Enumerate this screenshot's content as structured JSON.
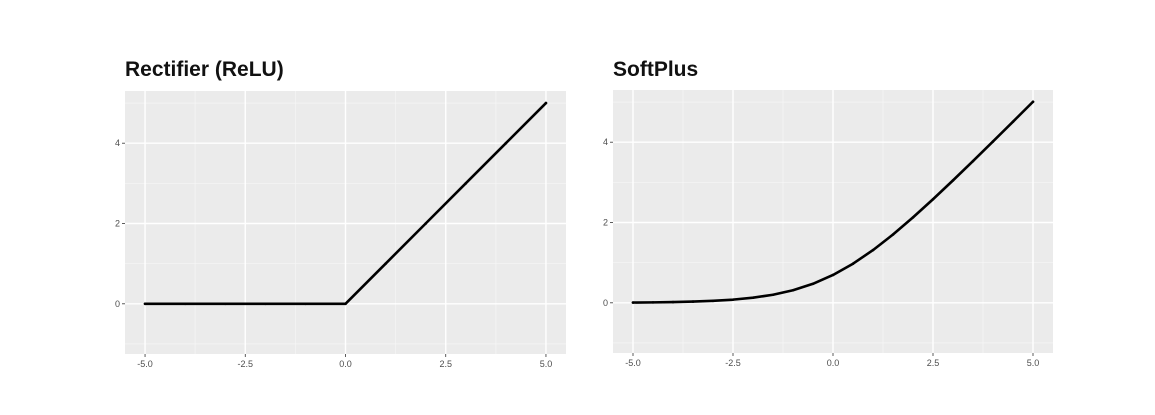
{
  "chart_data": [
    {
      "type": "line",
      "title": "Rectifier (ReLU)",
      "xlabel": "",
      "ylabel": "",
      "xlim": [
        -5.5,
        5.5
      ],
      "ylim": [
        -1.25,
        5.3
      ],
      "x_ticks": [
        -5.0,
        -2.5,
        0.0,
        2.5,
        5.0
      ],
      "x_tick_labels": [
        "-5.0",
        "-2.5",
        "0.0",
        "2.5",
        "5.0"
      ],
      "y_ticks": [
        0,
        2,
        4
      ],
      "y_tick_labels": [
        "0",
        "2",
        "4"
      ],
      "grid": true,
      "series": [
        {
          "x": [
            -5.0,
            -4.0,
            -3.0,
            -2.0,
            -1.0,
            0.0,
            1.0,
            2.0,
            3.0,
            4.0,
            5.0
          ],
          "y": [
            0,
            0,
            0,
            0,
            0,
            0,
            1.0,
            2.0,
            3.0,
            4.0,
            5.0
          ]
        }
      ]
    },
    {
      "type": "line",
      "title": "SoftPlus",
      "xlabel": "",
      "ylabel": "",
      "xlim": [
        -5.5,
        5.5
      ],
      "ylim": [
        -1.25,
        5.3
      ],
      "x_ticks": [
        -5.0,
        -2.5,
        0.0,
        2.5,
        5.0
      ],
      "x_tick_labels": [
        "-5.0",
        "-2.5",
        "0.0",
        "2.5",
        "5.0"
      ],
      "y_ticks": [
        0,
        2,
        4
      ],
      "y_tick_labels": [
        "0",
        "2",
        "4"
      ],
      "grid": true,
      "series": [
        {
          "x": [
            -5.0,
            -4.5,
            -4.0,
            -3.5,
            -3.0,
            -2.5,
            -2.0,
            -1.5,
            -1.0,
            -0.5,
            0.0,
            0.5,
            1.0,
            1.5,
            2.0,
            2.5,
            3.0,
            3.5,
            4.0,
            4.5,
            5.0
          ],
          "y": [
            0.007,
            0.011,
            0.018,
            0.03,
            0.049,
            0.079,
            0.127,
            0.201,
            0.313,
            0.474,
            0.693,
            0.974,
            1.313,
            1.701,
            2.127,
            2.579,
            3.049,
            3.53,
            4.018,
            4.511,
            5.007
          ]
        }
      ]
    }
  ],
  "colors": {
    "panel_background": "#ebebeb",
    "grid_major": "#ffffff",
    "line": "#000000",
    "tick_text": "#4d4d4d"
  }
}
